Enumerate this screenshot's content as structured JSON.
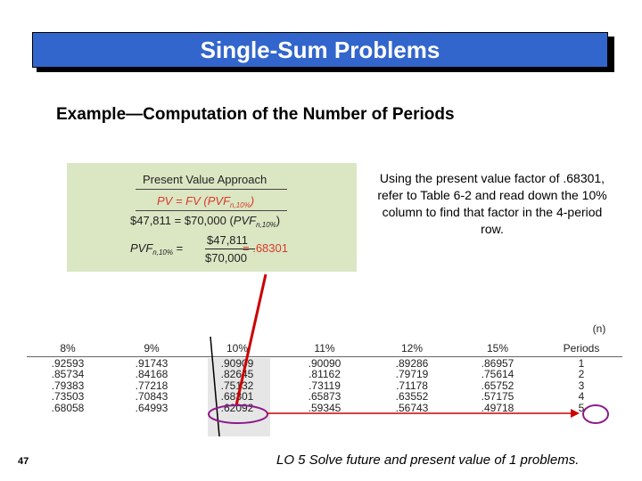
{
  "title": "Single-Sum Problems",
  "subtitle": "Example—Computation of the Number of Periods",
  "panel": {
    "heading": "Present Value Approach",
    "eq1_left": "PV",
    "eq1_right": "= FV (PVF",
    "eq1_sub": "n,10%",
    "eq1_close": ")",
    "eq2_left": "$47,811",
    "eq2_mid": "= $70,000 (",
    "eq2_pvf": "PVF",
    "eq2_sub": "n,10%",
    "eq2_close": ")",
    "eq3_pvf": "PVF",
    "eq3_sub": "n,10%",
    "eq3_eq": "=",
    "eq3_num": "$47,811",
    "eq3_den": "$70,000",
    "eq3_result": "= .68301"
  },
  "note": "Using the present value factor of .68301, refer to Table 6-2 and read down the 10% column to find that factor in the 4-period row.",
  "table": {
    "n_label_1": "(n)",
    "headers": [
      "8%",
      "9%",
      "10%",
      "11%",
      "12%",
      "15%",
      "Periods"
    ],
    "rows": [
      [
        ".92593",
        ".91743",
        ".90909",
        ".90090",
        ".89286",
        ".86957",
        "1"
      ],
      [
        ".85734",
        ".84168",
        ".82645",
        ".81162",
        ".79719",
        ".75614",
        "2"
      ],
      [
        ".79383",
        ".77218",
        ".75132",
        ".73119",
        ".71178",
        ".65752",
        "3"
      ],
      [
        ".73503",
        ".70843",
        ".68301",
        ".65873",
        ".63552",
        ".57175",
        "4"
      ],
      [
        ".68058",
        ".64993",
        ".62092",
        ".59345",
        ".56743",
        ".49718",
        "5"
      ]
    ]
  },
  "page_number": "47",
  "footer": "LO 5  Solve future and present value of 1 problems.",
  "colors": {
    "title_bg": "#3366cc",
    "panel_bg": "#dbe6c3",
    "accent_red": "#d83b2b",
    "marker_red": "#cc0000",
    "marker_purple": "#8b1a8b"
  }
}
